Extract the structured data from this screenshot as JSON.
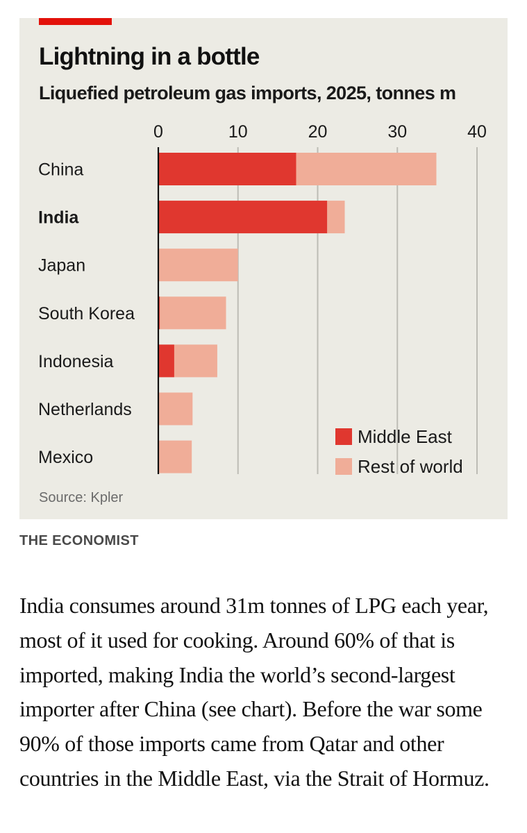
{
  "chart_data": {
    "type": "bar",
    "orientation": "horizontal",
    "stacked": true,
    "title": "Lightning in a bottle",
    "subtitle": "Liquefied petroleum gas imports, 2025, tonnes m",
    "categories": [
      "China",
      "India",
      "Japan",
      "South Korea",
      "Indonesia",
      "Netherlands",
      "Mexico"
    ],
    "highlight_category": "India",
    "series": [
      {
        "name": "Middle East",
        "color": "#e0372f",
        "values": [
          17.3,
          21.2,
          0,
          0.2,
          2.0,
          0,
          0
        ]
      },
      {
        "name": "Rest of world",
        "color": "#f0ad98",
        "values": [
          17.6,
          2.2,
          10.0,
          8.3,
          5.4,
          4.3,
          4.2
        ]
      }
    ],
    "xlim": [
      0,
      40
    ],
    "xticks": [
      0,
      10,
      20,
      30,
      40
    ],
    "tick_labels": [
      "0",
      "10",
      "20",
      "30",
      "40"
    ],
    "grid": true,
    "legend_position": "bottom-right",
    "source": "Source: Kpler"
  },
  "publisher": "THE ECONOMIST",
  "article": {
    "paragraph": "India consumes around 31m tonnes of LPG each year, most of it used for cooking. Around 60% of that is imported, making India the world’s second-largest importer after China (see chart). Before the war some 90% of those imports came from Qatar and other countries in the Middle East, via the Strait of Hormuz."
  }
}
